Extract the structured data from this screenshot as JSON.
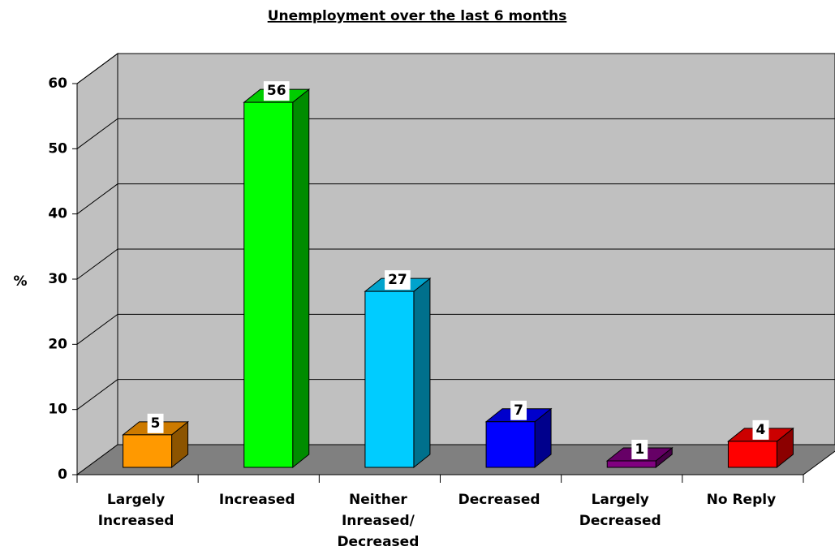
{
  "chart_data": {
    "type": "bar3d",
    "title": "Unemployment over the last 6 months",
    "y_label": "%",
    "categories": [
      "Largely Increased",
      "Increased",
      "Neither Inreased/ Decreased",
      "Decreased",
      "Largely Decreased",
      "No Reply"
    ],
    "values": [
      5,
      56,
      27,
      7,
      1,
      4
    ],
    "colors": [
      "#ff9900",
      "#00ff00",
      "#00ccff",
      "#0000ff",
      "#800080",
      "#ff0000"
    ],
    "ylim": [
      0,
      60
    ],
    "yticks": [
      0,
      10,
      20,
      30,
      40,
      50,
      60
    ],
    "grid": true
  }
}
